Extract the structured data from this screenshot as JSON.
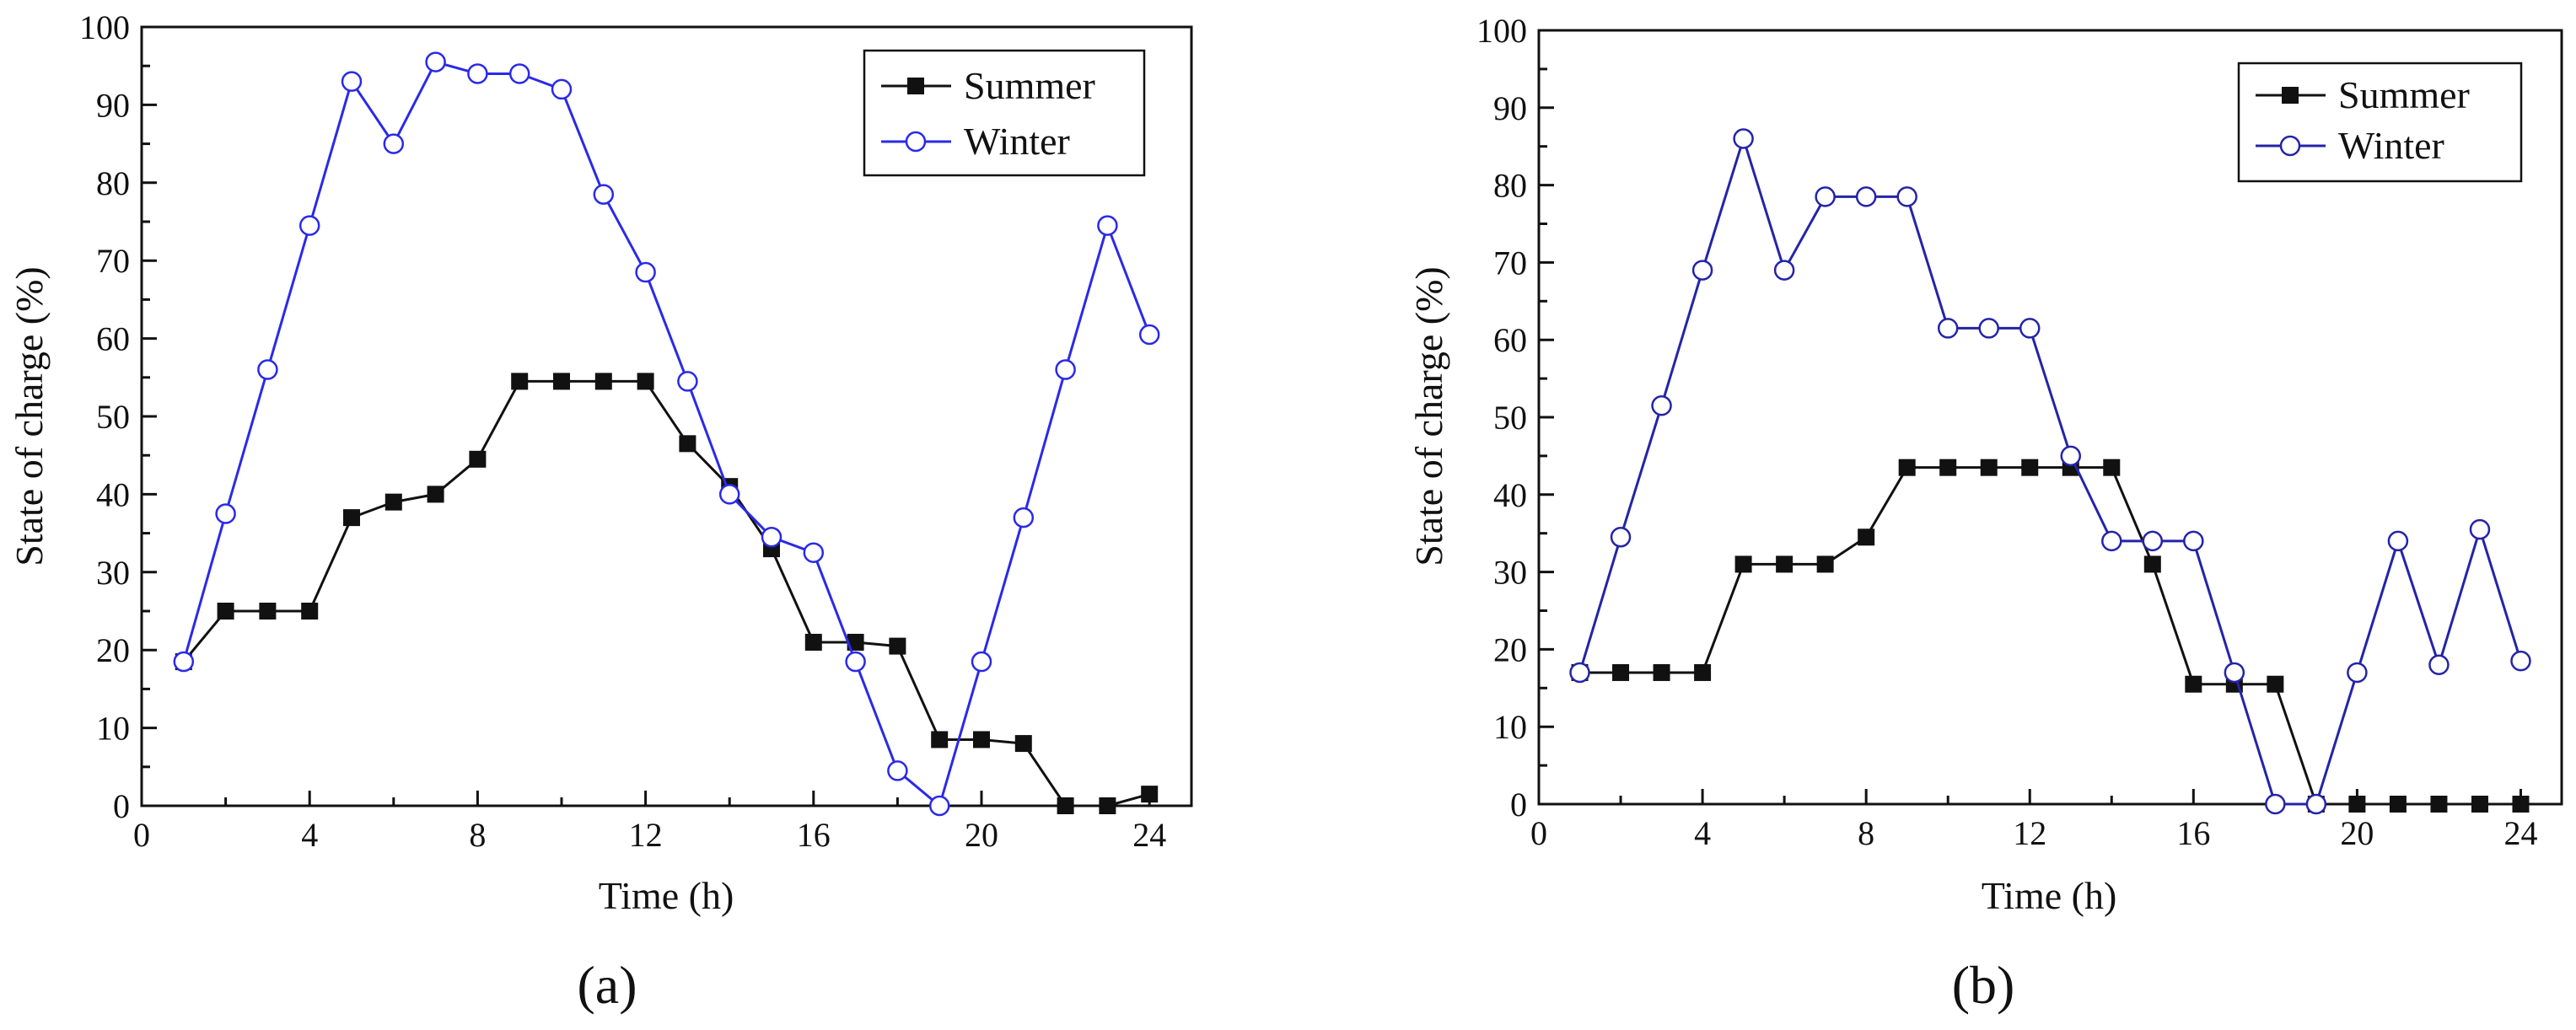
{
  "chart_data": [
    {
      "type": "line",
      "panel_label": "(a)",
      "xlabel": "Time (h)",
      "ylabel": "State of charge (%)",
      "xlim": [
        0,
        25
      ],
      "ylim": [
        0,
        100
      ],
      "xticks": [
        0,
        4,
        8,
        12,
        16,
        20,
        24
      ],
      "yticks": [
        0,
        10,
        20,
        30,
        40,
        50,
        60,
        70,
        80,
        90,
        100
      ],
      "legend_position": "top-right",
      "x": [
        1,
        2,
        3,
        4,
        5,
        6,
        7,
        8,
        9,
        10,
        11,
        12,
        13,
        14,
        15,
        16,
        17,
        18,
        19,
        20,
        21,
        22,
        23,
        24
      ],
      "series": [
        {
          "name": "Summer",
          "color": "#111111",
          "marker": "filled-square",
          "values": [
            18.5,
            25,
            25,
            25,
            37,
            39,
            40,
            44.5,
            54.5,
            54.5,
            54.5,
            54.5,
            46.5,
            41,
            33,
            21,
            21,
            20.5,
            8.5,
            8.5,
            8,
            0,
            0,
            1.5
          ]
        },
        {
          "name": "Winter",
          "color": "#2a2ae8",
          "marker": "open-circle",
          "values": [
            18.5,
            37.5,
            56,
            74.5,
            93,
            85,
            95.5,
            94,
            94,
            92,
            78.5,
            68.5,
            54.5,
            40,
            34.5,
            32.5,
            18.5,
            4.5,
            0,
            18.5,
            37,
            56,
            74.5,
            60.5
          ]
        }
      ]
    },
    {
      "type": "line",
      "panel_label": "(b)",
      "xlabel": "Time (h)",
      "ylabel": "State of charge (%)",
      "xlim": [
        0,
        25
      ],
      "ylim": [
        0,
        100
      ],
      "xticks": [
        0,
        4,
        8,
        12,
        16,
        20,
        24
      ],
      "yticks": [
        0,
        10,
        20,
        30,
        40,
        50,
        60,
        70,
        80,
        90,
        100
      ],
      "legend_position": "top-right",
      "x": [
        1,
        2,
        3,
        4,
        5,
        6,
        7,
        8,
        9,
        10,
        11,
        12,
        13,
        14,
        15,
        16,
        17,
        18,
        19,
        20,
        21,
        22,
        23,
        24
      ],
      "series": [
        {
          "name": "Summer",
          "color": "#111111",
          "marker": "filled-square",
          "values": [
            17,
            17,
            17,
            17,
            31,
            31,
            31,
            34.5,
            43.5,
            43.5,
            43.5,
            43.5,
            43.5,
            43.5,
            31,
            15.5,
            15.5,
            15.5,
            0,
            0,
            0,
            0,
            0,
            0
          ]
        },
        {
          "name": "Winter",
          "color": "#2424a8",
          "marker": "open-circle",
          "values": [
            17,
            34.5,
            51.5,
            69,
            86,
            69,
            78.5,
            78.5,
            78.5,
            61.5,
            61.5,
            61.5,
            45,
            34,
            34,
            34,
            17,
            0,
            0,
            17,
            34,
            18,
            35.5,
            18.5
          ]
        }
      ]
    }
  ]
}
